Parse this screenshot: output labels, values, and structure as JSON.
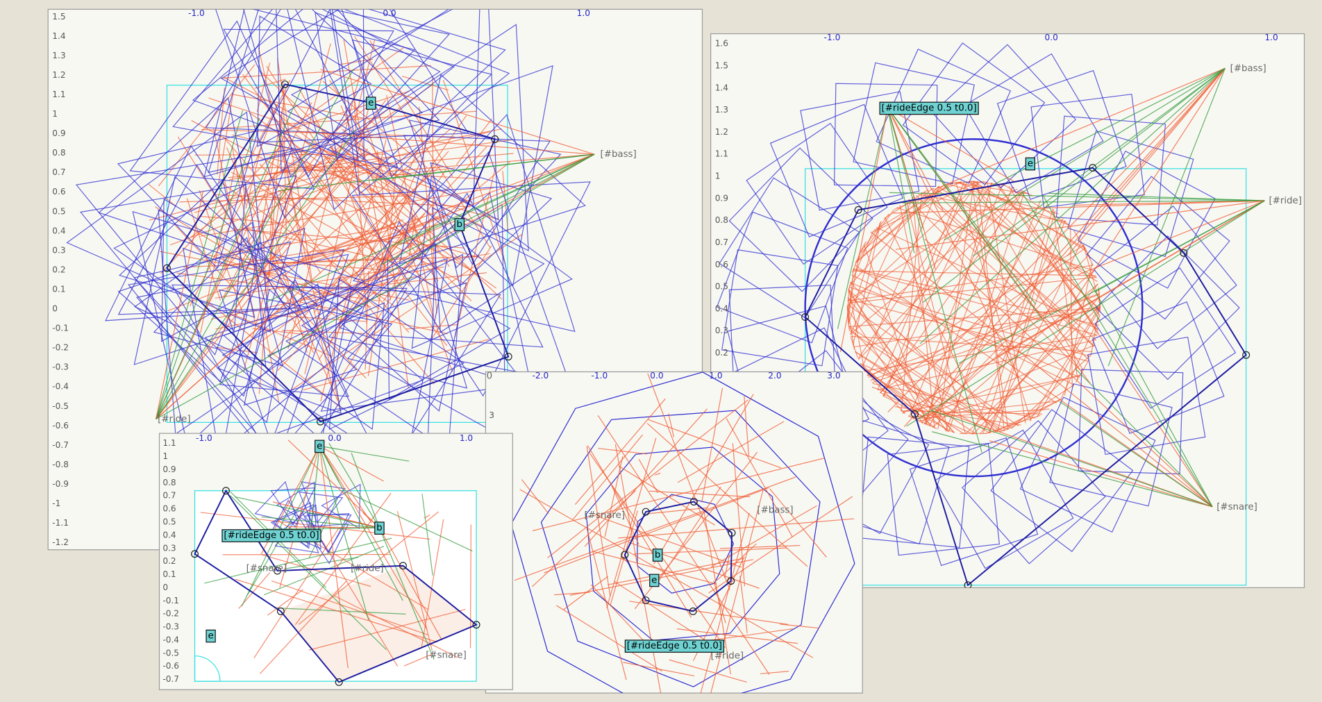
{
  "windows": [
    {
      "x_ticks": [
        "-1.0",
        "0.0",
        "1.0"
      ],
      "y_ticks": [
        "1.5",
        "1.4",
        "1.3",
        "1.2",
        "1.1",
        "1",
        "0.9",
        "0.8",
        "0.7",
        "0.6",
        "0.5",
        "0.4",
        "0.3",
        "0.2",
        "0.1",
        "0",
        "-0.1",
        "-0.2",
        "-0.3",
        "-0.4",
        "-0.5",
        "-0.6",
        "-0.7",
        "-0.8",
        "-0.9",
        "-1",
        "-1.1",
        "-1.2"
      ],
      "labels": [
        "[#bass]",
        "[#ride]"
      ],
      "boxes": [
        "e",
        "b"
      ]
    },
    {
      "x_ticks": [
        "-1.0",
        "0.0",
        "1.0"
      ],
      "y_ticks": [
        "1.6",
        "1.5",
        "1.4",
        "1.3",
        "1.2",
        "1.1",
        "1",
        "0.9",
        "0.8",
        "0.7",
        "0.6",
        "0.5",
        "0.4",
        "0.3",
        "0.2"
      ],
      "labels": [
        "[#bass]",
        "[#ride]",
        "[#snare]"
      ],
      "boxes": [
        "[#rideEdge 0.5 t0.0]",
        "e"
      ]
    },
    {
      "x_ticks": [
        "-2.0",
        "-1.0",
        "0.0",
        "1.0",
        "2.0",
        "3.0"
      ],
      "y_ticks": [
        "3"
      ],
      "labels": [
        "0",
        "[#snare]",
        "[#bass]",
        "[#ride]"
      ],
      "boxes": [
        "b",
        "e",
        "[#rideEdge 0.5 t0.0]"
      ]
    },
    {
      "x_ticks": [
        "-1.0",
        "0.0",
        "1.0"
      ],
      "y_ticks": [
        "1.1",
        "1",
        "0.9",
        "0.8",
        "0.7",
        "0.6",
        "0.5",
        "0.4",
        "0.3",
        "0.2",
        "0.1",
        "0",
        "-0.1",
        "-0.2",
        "-0.3",
        "-0.4",
        "-0.5",
        "-0.6",
        "-0.7"
      ],
      "labels": [
        "[#ride]",
        "[#snare]",
        "[#snare]"
      ],
      "boxes": [
        "e",
        "b",
        "[#rideEdge 0.5 t0.0]",
        "e"
      ]
    }
  ]
}
